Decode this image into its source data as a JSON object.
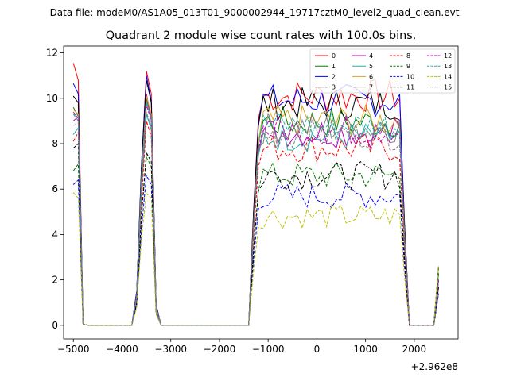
{
  "chart_data": {
    "type": "line",
    "suptitle": "Data file: modeM0/AS1A05_013T01_9000002944_19717cztM0_level2_quad_clean.evt",
    "title": "Quadrant 2 module wise count rates with 100.0s bins.",
    "xlabel": "",
    "ylabel": "",
    "offset_text": "+2.962e8",
    "xlim": [
      -5200,
      2900
    ],
    "ylim": [
      -0.6,
      12.3
    ],
    "x_ticks": [
      -5000,
      -4000,
      -3000,
      -2000,
      -1000,
      0,
      1000,
      2000
    ],
    "x_tick_labels": [
      "−5000",
      "−4000",
      "−3000",
      "−2000",
      "−1000",
      "0",
      "1000",
      "2000"
    ],
    "y_ticks": [
      0,
      2,
      4,
      6,
      8,
      10,
      12
    ],
    "y_tick_labels": [
      "0",
      "2",
      "4",
      "6",
      "8",
      "10",
      "12"
    ],
    "legend_position": "upper-right",
    "legend_columns": 4,
    "segments": [
      {
        "start": -5000,
        "step": 100,
        "count": 3,
        "levels": 1.0,
        "profile": "seg1"
      },
      {
        "start": -3800,
        "step": 100,
        "count": 6,
        "levels": 1.0,
        "profile": "peak"
      },
      {
        "start": -1300,
        "step": 100,
        "count": 32,
        "levels": 1.0,
        "profile": "plateau"
      },
      {
        "start": 2500,
        "step": 100,
        "count": 1,
        "levels": 1.0,
        "profile": "end"
      }
    ],
    "series": [
      {
        "name": "0",
        "color": "#ff0000",
        "dash": "solid",
        "level": 10.1,
        "seg1": [
          11.55,
          10.8,
          0.05
        ],
        "peak": [
          0.0,
          1.5,
          7.0,
          11.2,
          10.2,
          0.9
        ]
      },
      {
        "name": "1",
        "color": "#008000",
        "dash": "solid",
        "level": 8.95,
        "seg1": [
          9.6,
          9.2,
          0.05
        ],
        "peak": [
          0.0,
          1.3,
          6.5,
          10.0,
          9.2,
          0.8
        ]
      },
      {
        "name": "2",
        "color": "#0000ff",
        "dash": "solid",
        "level": 9.9,
        "seg1": [
          10.65,
          10.2,
          0.05
        ],
        "peak": [
          0.0,
          1.5,
          7.2,
          11.0,
          9.9,
          0.9
        ]
      },
      {
        "name": "3",
        "color": "#000000",
        "dash": "solid",
        "level": 9.75,
        "seg1": [
          10.1,
          9.8,
          0.05
        ],
        "peak": [
          0.0,
          1.4,
          7.0,
          10.8,
          9.8,
          0.9
        ]
      },
      {
        "name": "4",
        "color": "#bf00bf",
        "dash": "solid",
        "level": 8.5,
        "seg1": [
          9.4,
          9.1,
          0.05
        ],
        "peak": [
          0.0,
          1.3,
          6.4,
          10.2,
          9.1,
          0.8
        ]
      },
      {
        "name": "5",
        "color": "#20b2aa",
        "dash": "solid",
        "level": 8.3,
        "seg1": [
          8.4,
          8.7,
          0.05
        ],
        "peak": [
          0.0,
          1.2,
          5.9,
          9.3,
          8.6,
          0.7
        ]
      },
      {
        "name": "6",
        "color": "#daa520",
        "dash": "solid",
        "level": 9.0,
        "seg1": [
          9.5,
          9.3,
          0.05
        ],
        "peak": [
          0.0,
          1.3,
          6.6,
          10.1,
          9.3,
          0.8
        ]
      },
      {
        "name": "7",
        "color": "#808080",
        "dash": "solid",
        "level": 8.7,
        "seg1": [
          9.3,
          9.0,
          0.05
        ],
        "peak": [
          0.0,
          1.3,
          6.3,
          9.9,
          9.0,
          0.8
        ]
      },
      {
        "name": "8",
        "color": "#ff0000",
        "dash": "dashed",
        "level": 7.8,
        "seg1": [
          8.1,
          8.5,
          0.05
        ],
        "peak": [
          0.0,
          1.2,
          5.5,
          9.0,
          8.3,
          0.7
        ]
      },
      {
        "name": "9",
        "color": "#008000",
        "dash": "dashed",
        "level": 6.6,
        "seg1": [
          6.8,
          7.1,
          0.05
        ],
        "peak": [
          0.0,
          1.0,
          4.9,
          7.4,
          7.0,
          0.6
        ]
      },
      {
        "name": "10",
        "color": "#0000ff",
        "dash": "dashed",
        "level": 5.7,
        "seg1": [
          6.2,
          6.4,
          0.05
        ],
        "peak": [
          0.0,
          0.9,
          4.3,
          6.6,
          6.2,
          0.5
        ]
      },
      {
        "name": "11",
        "color": "#000000",
        "dash": "dashed",
        "level": 6.6,
        "seg1": [
          7.8,
          8.0,
          0.05
        ],
        "peak": [
          0.0,
          1.0,
          4.9,
          7.6,
          7.2,
          0.6
        ]
      },
      {
        "name": "12",
        "color": "#bf00bf",
        "dash": "dashed",
        "level": 8.6,
        "seg1": [
          9.0,
          9.2,
          0.05
        ],
        "peak": [
          0.0,
          1.3,
          6.2,
          9.7,
          9.0,
          0.8
        ]
      },
      {
        "name": "13",
        "color": "#20b2aa",
        "dash": "dashed",
        "level": 8.8,
        "seg1": [
          9.3,
          9.2,
          0.05
        ],
        "peak": [
          0.0,
          1.3,
          6.4,
          9.8,
          9.1,
          0.8
        ]
      },
      {
        "name": "14",
        "color": "#bfbf00",
        "dash": "dashed",
        "level": 4.8,
        "seg1": [
          5.85,
          5.6,
          0.05
        ],
        "peak": [
          0.0,
          0.8,
          3.9,
          5.8,
          5.6,
          0.5
        ]
      },
      {
        "name": "15",
        "color": "#808080",
        "dash": "dashed",
        "level": 8.4,
        "seg1": [
          8.8,
          8.9,
          0.05
        ],
        "peak": [
          0.0,
          1.2,
          6.0,
          9.4,
          8.7,
          0.7
        ]
      }
    ]
  }
}
